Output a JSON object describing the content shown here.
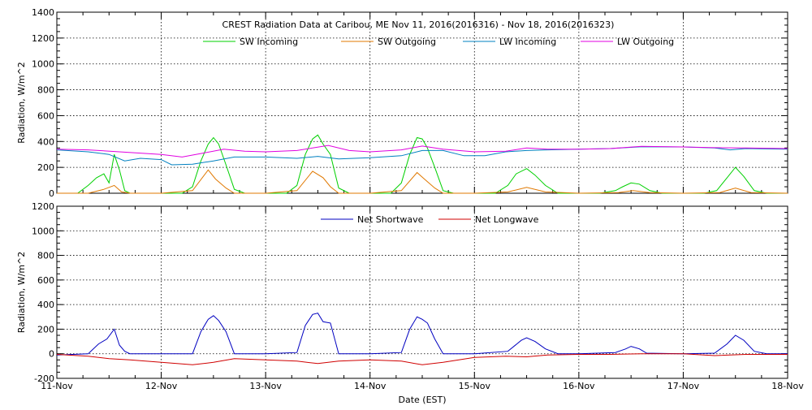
{
  "chart_data": [
    {
      "type": "line",
      "title": "CREST Radiation Data at Caribou, ME   Nov 11, 2016(2016316) - Nov 18, 2016(2016323)",
      "ylabel": "Radiation, W/m^2",
      "xlabel": "",
      "xlim": [
        0,
        7
      ],
      "ylim": [
        0,
        1400
      ],
      "y_ticks": [
        0,
        200,
        400,
        600,
        800,
        1000,
        1200,
        1400
      ],
      "grid": true,
      "legend_position": "top",
      "series": [
        {
          "name": "SW Incoming",
          "color": "#00d000",
          "x": [
            0.0,
            0.2,
            0.3,
            0.38,
            0.45,
            0.5,
            0.55,
            0.6,
            0.65,
            0.7,
            0.8,
            1.0,
            1.2,
            1.3,
            1.38,
            1.45,
            1.5,
            1.55,
            1.62,
            1.7,
            1.8,
            2.0,
            2.2,
            2.3,
            2.38,
            2.45,
            2.5,
            2.55,
            2.62,
            2.7,
            2.8,
            3.0,
            3.2,
            3.3,
            3.38,
            3.45,
            3.5,
            3.55,
            3.62,
            3.7,
            3.8,
            4.0,
            4.2,
            4.32,
            4.4,
            4.5,
            4.58,
            4.68,
            4.8,
            5.0,
            5.2,
            5.35,
            5.42,
            5.5,
            5.58,
            5.68,
            5.8,
            6.0,
            6.2,
            6.32,
            6.42,
            6.5,
            6.58,
            6.68,
            6.8,
            7.0
          ],
          "values": [
            0,
            0,
            60,
            120,
            150,
            80,
            300,
            180,
            20,
            0,
            0,
            0,
            0,
            50,
            250,
            380,
            430,
            380,
            220,
            30,
            0,
            0,
            0,
            60,
            300,
            420,
            450,
            380,
            300,
            40,
            0,
            0,
            0,
            80,
            300,
            430,
            420,
            350,
            200,
            20,
            0,
            0,
            0,
            60,
            150,
            190,
            140,
            60,
            0,
            0,
            0,
            20,
            50,
            80,
            70,
            20,
            0,
            0,
            0,
            20,
            120,
            200,
            130,
            20,
            0,
            0
          ]
        },
        {
          "name": "SW Outgoing",
          "color": "#e07800",
          "x": [
            0.0,
            0.3,
            0.45,
            0.55,
            0.62,
            0.7,
            1.0,
            1.3,
            1.45,
            1.52,
            1.62,
            1.7,
            2.0,
            2.3,
            2.45,
            2.55,
            2.62,
            2.7,
            3.0,
            3.3,
            3.45,
            3.52,
            3.62,
            3.7,
            4.0,
            4.32,
            4.5,
            4.68,
            5.0,
            5.38,
            5.52,
            5.68,
            6.0,
            6.35,
            6.5,
            6.65,
            7.0
          ],
          "values": [
            0,
            0,
            30,
            60,
            10,
            0,
            0,
            20,
            180,
            110,
            40,
            0,
            0,
            20,
            170,
            120,
            50,
            0,
            0,
            20,
            160,
            110,
            40,
            0,
            0,
            10,
            45,
            10,
            0,
            5,
            20,
            5,
            0,
            5,
            40,
            5,
            0
          ]
        },
        {
          "name": "LW Incoming",
          "color": "#0080c0",
          "x": [
            0.0,
            0.3,
            0.5,
            0.65,
            0.8,
            1.0,
            1.1,
            1.3,
            1.5,
            1.7,
            2.0,
            2.3,
            2.5,
            2.7,
            3.0,
            3.3,
            3.5,
            3.7,
            3.9,
            4.1,
            4.3,
            4.5,
            4.7,
            5.0,
            5.3,
            5.6,
            6.0,
            6.3,
            6.45,
            6.6,
            7.0
          ],
          "values": [
            335,
            320,
            300,
            250,
            270,
            260,
            220,
            225,
            250,
            280,
            280,
            270,
            285,
            265,
            275,
            290,
            330,
            330,
            290,
            290,
            320,
            330,
            335,
            340,
            345,
            360,
            358,
            350,
            335,
            345,
            340
          ]
        },
        {
          "name": "LW Outgoing",
          "color": "#e000e0",
          "x": [
            0.0,
            0.3,
            0.6,
            0.8,
            1.0,
            1.2,
            1.4,
            1.6,
            1.8,
            2.0,
            2.3,
            2.6,
            2.8,
            3.0,
            3.3,
            3.5,
            3.7,
            4.0,
            4.3,
            4.5,
            4.7,
            5.0,
            5.3,
            5.6,
            6.0,
            6.3,
            6.6,
            7.0
          ],
          "values": [
            340,
            335,
            320,
            310,
            300,
            280,
            310,
            340,
            325,
            320,
            330,
            370,
            330,
            320,
            335,
            365,
            340,
            320,
            325,
            350,
            340,
            340,
            345,
            362,
            358,
            352,
            350,
            345
          ]
        }
      ]
    },
    {
      "type": "line",
      "title": "",
      "ylabel": "Radiation, W/m^2",
      "xlabel": "Date (EST)",
      "x_ticks": [
        "11-Nov",
        "12-Nov",
        "13-Nov",
        "14-Nov",
        "15-Nov",
        "16-Nov",
        "17-Nov",
        "18-Nov"
      ],
      "xlim": [
        0,
        7
      ],
      "ylim": [
        -200,
        1200
      ],
      "y_ticks": [
        -200,
        0,
        200,
        400,
        600,
        800,
        1000,
        1200
      ],
      "grid": true,
      "legend_position": "top",
      "series": [
        {
          "name": "Net Shortwave",
          "color": "#0000c0",
          "x": [
            0.0,
            0.3,
            0.4,
            0.48,
            0.55,
            0.6,
            0.65,
            0.7,
            1.0,
            1.3,
            1.38,
            1.45,
            1.5,
            1.55,
            1.62,
            1.7,
            2.0,
            2.3,
            2.38,
            2.45,
            2.5,
            2.55,
            2.62,
            2.7,
            3.0,
            3.3,
            3.38,
            3.45,
            3.5,
            3.55,
            3.62,
            3.7,
            4.0,
            4.32,
            4.45,
            4.5,
            4.58,
            4.68,
            4.8,
            5.0,
            5.35,
            5.45,
            5.5,
            5.58,
            5.65,
            6.0,
            6.3,
            6.42,
            6.5,
            6.58,
            6.68,
            6.8,
            7.0
          ],
          "values": [
            -10,
            0,
            80,
            120,
            200,
            70,
            20,
            0,
            0,
            0,
            180,
            280,
            310,
            270,
            180,
            0,
            0,
            10,
            230,
            320,
            330,
            260,
            250,
            0,
            0,
            10,
            200,
            300,
            280,
            250,
            120,
            0,
            0,
            20,
            110,
            130,
            100,
            40,
            0,
            0,
            10,
            40,
            60,
            40,
            5,
            0,
            5,
            80,
            150,
            110,
            20,
            0,
            0
          ]
        },
        {
          "name": "Net Longwave",
          "color": "#d00000",
          "x": [
            0.0,
            0.3,
            0.5,
            0.7,
            1.0,
            1.3,
            1.5,
            1.7,
            2.0,
            2.3,
            2.5,
            2.7,
            3.0,
            3.3,
            3.5,
            3.7,
            4.0,
            4.3,
            4.5,
            4.7,
            5.0,
            5.3,
            5.6,
            6.0,
            6.3,
            6.6,
            7.0
          ],
          "values": [
            -5,
            -20,
            -40,
            -50,
            -70,
            -90,
            -70,
            -40,
            -50,
            -60,
            -80,
            -60,
            -50,
            -60,
            -90,
            -70,
            -30,
            -20,
            -25,
            -10,
            -5,
            -5,
            0,
            0,
            -15,
            -5,
            -5
          ]
        }
      ]
    }
  ]
}
